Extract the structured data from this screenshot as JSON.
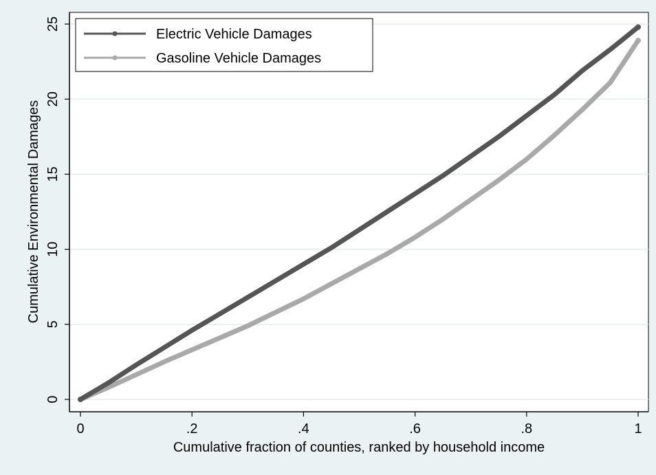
{
  "chart_data": {
    "type": "line",
    "title": "",
    "xlabel": "Cumulative fraction of counties, ranked by household income",
    "ylabel": "Cumulative Environmental Damages",
    "xlim": [
      0,
      1
    ],
    "ylim": [
      0,
      25
    ],
    "x_ticks": [
      0,
      0.2,
      0.4,
      0.6,
      0.8,
      1
    ],
    "x_tick_labels": [
      "0",
      ".2",
      ".4",
      ".6",
      ".8",
      "1"
    ],
    "y_ticks": [
      0,
      5,
      10,
      15,
      20,
      25
    ],
    "y_tick_labels": [
      "0",
      "5",
      "10",
      "15",
      "20",
      "25"
    ],
    "grid": "horizontal",
    "legend_position": "top-left",
    "series": [
      {
        "name": "Electric Vehicle Damages",
        "color": "#555555",
        "x": [
          0,
          0.05,
          0.1,
          0.15,
          0.2,
          0.25,
          0.3,
          0.35,
          0.4,
          0.45,
          0.5,
          0.55,
          0.6,
          0.65,
          0.7,
          0.75,
          0.8,
          0.85,
          0.9,
          0.95,
          1.0
        ],
        "y": [
          0,
          1.1,
          2.3,
          3.45,
          4.6,
          5.7,
          6.8,
          7.9,
          9.0,
          10.1,
          11.3,
          12.5,
          13.7,
          14.9,
          16.2,
          17.5,
          18.9,
          20.3,
          21.9,
          23.3,
          24.8
        ]
      },
      {
        "name": "Gasoline Vehicle Damages",
        "color": "#a9a9a9",
        "x": [
          0,
          0.05,
          0.1,
          0.15,
          0.2,
          0.25,
          0.3,
          0.35,
          0.4,
          0.45,
          0.5,
          0.55,
          0.6,
          0.65,
          0.7,
          0.75,
          0.8,
          0.85,
          0.9,
          0.95,
          1.0
        ],
        "y": [
          0,
          0.8,
          1.65,
          2.5,
          3.3,
          4.1,
          4.9,
          5.8,
          6.7,
          7.7,
          8.7,
          9.7,
          10.8,
          12.0,
          13.3,
          14.6,
          16.0,
          17.6,
          19.3,
          21.1,
          23.9
        ]
      }
    ]
  }
}
